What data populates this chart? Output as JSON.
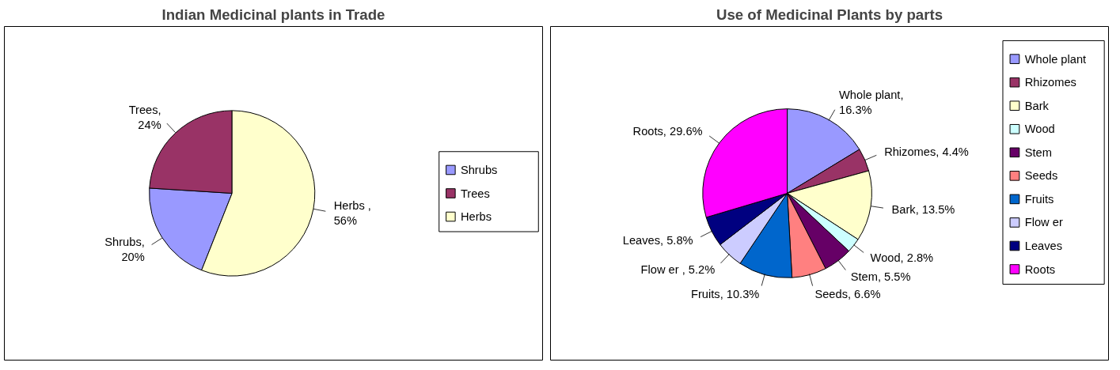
{
  "chart_data": [
    {
      "type": "pie",
      "title": "Indian Medicinal plants in Trade",
      "categories": [
        "Shrubs",
        "Trees",
        "Herbs"
      ],
      "values": [
        20,
        24,
        56
      ],
      "colors": [
        "#9999ff",
        "#993366",
        "#ffffcc"
      ],
      "value_labels": [
        "Shrubs,\n20%",
        "Trees,\n24%",
        "Herbs ,\n56%"
      ],
      "legend": "right"
    },
    {
      "type": "pie",
      "title": "Use of Medicinal Plants by parts",
      "categories": [
        "Whole plant",
        "Rhizomes",
        "Bark",
        "Wood",
        "Stem",
        "Seeds",
        "Fruits",
        "Flow er",
        "Leaves",
        "Roots"
      ],
      "values": [
        16.3,
        4.4,
        13.5,
        2.8,
        5.5,
        6.6,
        10.3,
        5.2,
        5.8,
        29.6
      ],
      "colors": [
        "#9999ff",
        "#993366",
        "#ffffcc",
        "#ccffff",
        "#660066",
        "#ff8080",
        "#0066cc",
        "#ccccff",
        "#000080",
        "#ff00ff"
      ],
      "value_labels": [
        "Whole plant,\n16.3%",
        "Rhizomes, 4.4%",
        "Bark, 13.5%",
        "Wood, 2.8%",
        "Stem, 5.5%",
        "Seeds, 6.6%",
        "Fruits, 10.3%",
        "Flow er , 5.2%",
        "Leaves, 5.8%",
        "Roots, 29.6%"
      ],
      "legend": "right"
    }
  ]
}
